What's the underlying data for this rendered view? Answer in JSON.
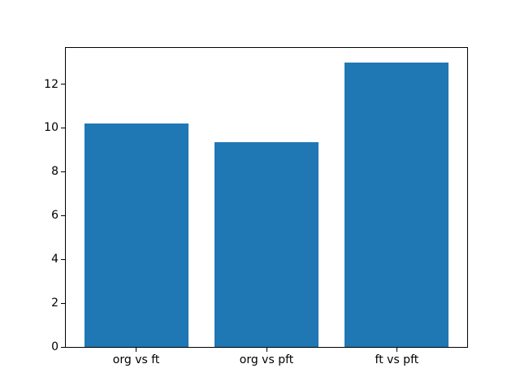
{
  "figure": {
    "background": "#ffffff"
  },
  "chart_data": {
    "type": "bar",
    "categories": [
      "org vs ft",
      "org vs pft",
      "ft vs pft"
    ],
    "values": [
      10.2,
      9.35,
      13.0
    ],
    "title": "",
    "xlabel": "",
    "ylabel": "",
    "ylim": [
      0,
      13.65
    ],
    "xlim": [
      -0.54,
      2.54
    ],
    "yticks": [
      0,
      2,
      4,
      6,
      8,
      10,
      12
    ],
    "bar_width": 0.8,
    "bar_color": "#1f77b4",
    "axis_color": "#000000",
    "grid": false,
    "legend_position": "none"
  }
}
